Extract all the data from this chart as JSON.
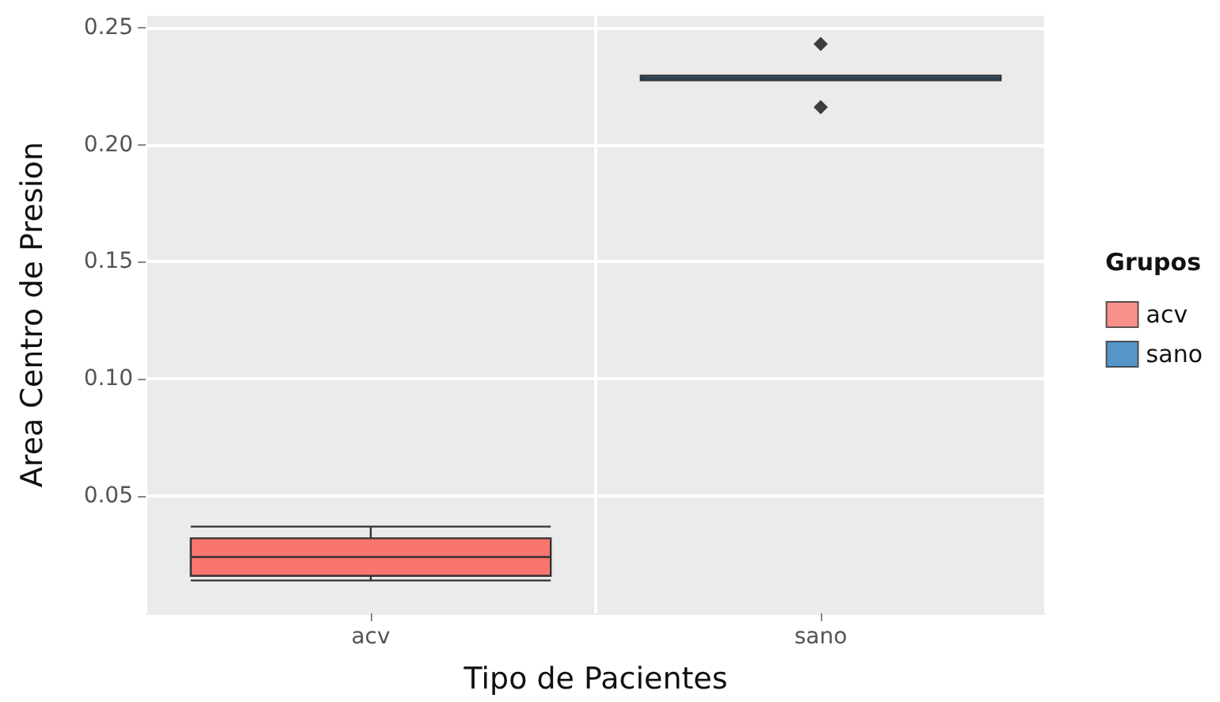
{
  "chart_data": {
    "type": "box",
    "xlabel": "Tipo de Pacientes",
    "ylabel": "Area Centro de Presion",
    "legend_title": "Grupos",
    "categories": [
      "acv",
      "sano"
    ],
    "series": [
      {
        "name": "acv",
        "color": "#f8766d",
        "boxes": [
          {
            "low": 0.014,
            "q1": 0.016,
            "median": 0.024,
            "q3": 0.032,
            "high": 0.037
          },
          null
        ]
      },
      {
        "name": "sano",
        "color": "#2b7bba",
        "boxes": [
          null,
          {
            "low": 0.2275,
            "q1": 0.2275,
            "median": 0.2285,
            "q3": 0.2295,
            "high": 0.2295,
            "outliers": [
              0.243,
              0.216
            ]
          }
        ]
      }
    ],
    "ylim": [
      0,
      0.255
    ],
    "yticks": [
      0.05,
      {
        "value": 0.1,
        "label": "0.10"
      },
      0.15,
      {
        "value": 0.2,
        "label": "0.20"
      },
      0.25
    ],
    "grid": true,
    "legend": "right"
  }
}
